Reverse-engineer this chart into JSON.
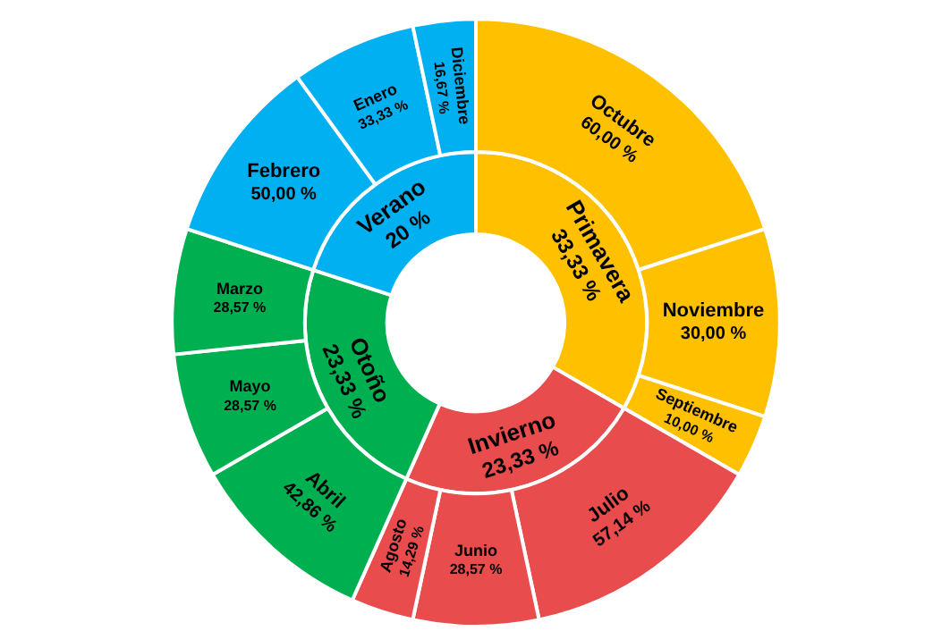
{
  "chart_data": {
    "type": "other",
    "categories": [
      "Primavera",
      "Invierno",
      "Otoño",
      "Verano",
      "Octubre",
      "Noviembre",
      "Septiembre",
      "Julio",
      "Junio",
      "Agosto",
      "Abril",
      "Mayo",
      "Marzo",
      "Febrero",
      "Enero",
      "Diciembre"
    ],
    "values": [
      33.33,
      23.33,
      23.33,
      20,
      60,
      30,
      10,
      57.14,
      28.57,
      14.29,
      42.86,
      28.57,
      28.57,
      50,
      33.33,
      16.67
    ],
    "colors": [
      "#ffc000",
      "#e84c4c",
      "#00b050",
      "#00b0f0",
      "#ffc000",
      "#ffc000",
      "#ffc000",
      "#e84c4c",
      "#e84c4c",
      "#e84c4c",
      "#00b050",
      "#00b050",
      "#00b050",
      "#00b0f0",
      "#00b0f0",
      "#00b0f0"
    ],
    "value_labels": [
      "33,33 %",
      "23,33 %",
      "23,33 %",
      "20 %",
      "60,00 %",
      "30,00 %",
      "10,00 %",
      "57,14 %",
      "28,57 %",
      "14,29 %",
      "42,86 %",
      "28,57 %",
      "28,57 %",
      "50,00 %",
      "33,33 %",
      "16,67 %"
    ]
  }
}
